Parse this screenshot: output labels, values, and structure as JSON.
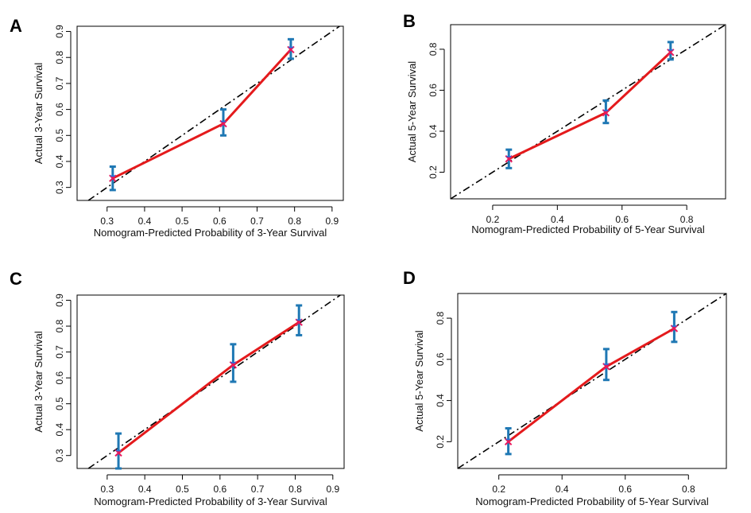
{
  "chart_data": [
    {
      "panel": "A",
      "type": "line",
      "title": "",
      "xlabel": "Nomogram-Predicted Probability of 3-Year Survival",
      "ylabel": "Actual 3-Year Survival",
      "xlim": [
        0.22,
        0.93
      ],
      "ylim": [
        0.25,
        0.92
      ],
      "xticks": [
        0.3,
        0.4,
        0.5,
        0.6,
        0.7,
        0.8,
        0.9
      ],
      "xtick_labels": [
        "0.3",
        "0.4",
        "0.5",
        "0.6",
        "0.7",
        "0.8",
        "0.9"
      ],
      "yticks": [
        0.3,
        0.4,
        0.5,
        0.6,
        0.7,
        0.8,
        0.9
      ],
      "ytick_labels": [
        "0.3",
        "0.4",
        "0.5",
        "0.6",
        "0.7",
        "0.8",
        "0.9"
      ],
      "series": [
        {
          "name": "observed",
          "x": [
            0.315,
            0.61,
            0.79
          ],
          "y": [
            0.335,
            0.545,
            0.83
          ],
          "ci_low": [
            0.29,
            0.5,
            0.795
          ],
          "ci_high": [
            0.38,
            0.6,
            0.87
          ]
        }
      ],
      "reference": "ideal diagonal y = x"
    },
    {
      "panel": "B",
      "type": "line",
      "title": "",
      "xlabel": "Nomogram-Predicted Probability of 5-Year Survival",
      "ylabel": "Actual 5-Year Survival",
      "xlim": [
        0.07,
        0.92
      ],
      "ylim": [
        0.07,
        0.92
      ],
      "xticks": [
        0.2,
        0.4,
        0.6,
        0.8
      ],
      "xtick_labels": [
        "0.2",
        "0.4",
        "0.6",
        "0.8"
      ],
      "yticks": [
        0.2,
        0.4,
        0.6,
        0.8
      ],
      "ytick_labels": [
        "0.2",
        "0.4",
        "0.6",
        "0.8"
      ],
      "series": [
        {
          "name": "observed",
          "x": [
            0.25,
            0.55,
            0.75
          ],
          "y": [
            0.265,
            0.49,
            0.785
          ],
          "ci_low": [
            0.22,
            0.44,
            0.75
          ],
          "ci_high": [
            0.31,
            0.55,
            0.835
          ]
        }
      ],
      "reference": "ideal diagonal y = x"
    },
    {
      "panel": "C",
      "type": "line",
      "title": "",
      "xlabel": "Nomogram-Predicted Probability of 3-Year Survival",
      "ylabel": "Actual 3-Year Survival",
      "xlim": [
        0.22,
        0.93
      ],
      "ylim": [
        0.25,
        0.92
      ],
      "xticks": [
        0.3,
        0.4,
        0.5,
        0.6,
        0.7,
        0.8,
        0.9
      ],
      "xtick_labels": [
        "0.3",
        "0.4",
        "0.5",
        "0.6",
        "0.7",
        "0.8",
        "0.9"
      ],
      "yticks": [
        0.3,
        0.4,
        0.5,
        0.6,
        0.7,
        0.8,
        0.9
      ],
      "ytick_labels": [
        "0.3",
        "0.4",
        "0.5",
        "0.6",
        "0.7",
        "0.8",
        "0.9"
      ],
      "series": [
        {
          "name": "observed",
          "x": [
            0.33,
            0.635,
            0.81
          ],
          "y": [
            0.31,
            0.65,
            0.815
          ],
          "ci_low": [
            0.25,
            0.585,
            0.765
          ],
          "ci_high": [
            0.385,
            0.73,
            0.88
          ]
        }
      ],
      "reference": "ideal diagonal y = x"
    },
    {
      "panel": "D",
      "type": "line",
      "title": "",
      "xlabel": "Nomogram-Predicted Probability of 5-Year Survival",
      "ylabel": "Actual 5-Year Survival",
      "xlim": [
        0.07,
        0.92
      ],
      "ylim": [
        0.07,
        0.92
      ],
      "xticks": [
        0.2,
        0.4,
        0.6,
        0.8
      ],
      "xtick_labels": [
        "0.2",
        "0.4",
        "0.6",
        "0.8"
      ],
      "yticks": [
        0.2,
        0.4,
        0.6,
        0.8
      ],
      "ytick_labels": [
        "0.2",
        "0.4",
        "0.6",
        "0.8"
      ],
      "series": [
        {
          "name": "observed",
          "x": [
            0.23,
            0.54,
            0.755
          ],
          "y": [
            0.2,
            0.565,
            0.75
          ],
          "ci_low": [
            0.14,
            0.5,
            0.685
          ],
          "ci_high": [
            0.265,
            0.65,
            0.83
          ]
        }
      ],
      "reference": "ideal diagonal y = x"
    }
  ],
  "colors": {
    "calibration_line": "#e41a1c",
    "error_bar": "#1f78b4",
    "point_marker": "#e8175d",
    "bias_marker": "#2a6fdb",
    "ideal_line": "#000000"
  }
}
